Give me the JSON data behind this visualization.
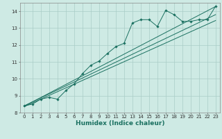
{
  "xlabel": "Humidex (Indice chaleur)",
  "bg_color": "#ceeae4",
  "line_color": "#1a7060",
  "grid_color": "#aaccc6",
  "series": [
    {
      "x": [
        0,
        1,
        2,
        3,
        4,
        5,
        6,
        7,
        8,
        9,
        10,
        11,
        12,
        13,
        14,
        15,
        16,
        17,
        18,
        19,
        20,
        21,
        22,
        23
      ],
      "y": [
        8.4,
        8.5,
        8.8,
        8.9,
        8.8,
        9.3,
        9.7,
        10.3,
        10.8,
        11.05,
        11.5,
        11.9,
        12.1,
        13.3,
        13.5,
        13.5,
        13.1,
        14.05,
        13.8,
        13.4,
        13.4,
        13.5,
        13.5,
        14.3
      ]
    },
    {
      "x": [
        0,
        23
      ],
      "y": [
        8.4,
        13.8
      ]
    },
    {
      "x": [
        0,
        23
      ],
      "y": [
        8.38,
        14.28
      ]
    },
    {
      "x": [
        0,
        23
      ],
      "y": [
        8.35,
        13.45
      ]
    }
  ],
  "xticks": [
    0,
    1,
    2,
    3,
    4,
    5,
    6,
    7,
    8,
    9,
    10,
    11,
    12,
    13,
    14,
    15,
    16,
    17,
    18,
    19,
    20,
    21,
    22,
    23
  ],
  "yticks": [
    8,
    9,
    10,
    11,
    12,
    13,
    14
  ],
  "xlim": [
    -0.5,
    23.5
  ],
  "ylim": [
    8.0,
    14.5
  ],
  "tick_fontsize": 5.0,
  "xlabel_fontsize": 6.5
}
